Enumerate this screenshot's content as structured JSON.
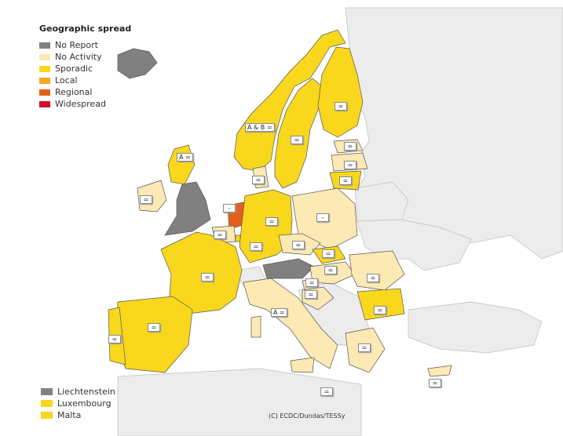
{
  "legend": {
    "title": "Geographic spread",
    "items": [
      {
        "label": "No Report",
        "color": "#808080"
      },
      {
        "label": "No Activity",
        "color": "#fce9b3"
      },
      {
        "label": "Sporadic",
        "color": "#f9d71c"
      },
      {
        "label": "Local",
        "color": "#f5a623"
      },
      {
        "label": "Regional",
        "color": "#e4601a"
      },
      {
        "label": "Widespread",
        "color": "#d0102c"
      }
    ]
  },
  "small_states": [
    {
      "label": "Liechtenstein",
      "color": "#808080"
    },
    {
      "label": "Luxembourg",
      "color": "#f9d71c"
    },
    {
      "label": "Malta",
      "color": "#f9d71c"
    }
  ],
  "credit": "(C) ECDC/Dundas/TESSy",
  "tags": [
    {
      "text": "A & B =",
      "country": "Norway"
    },
    {
      "text": "=",
      "country": "Finland"
    },
    {
      "text": "=",
      "country": "Sweden"
    },
    {
      "text": "A =",
      "country": "United Kingdom"
    },
    {
      "text": "=",
      "country": "Ireland"
    },
    {
      "text": "=",
      "country": "Estonia"
    },
    {
      "text": "=",
      "country": "Latvia"
    },
    {
      "text": "=",
      "country": "Lithuania"
    },
    {
      "text": "=",
      "country": "Denmark"
    },
    {
      "text": "-",
      "country": "Netherlands"
    },
    {
      "text": "=",
      "country": "Belgium"
    },
    {
      "text": "=",
      "country": "Germany"
    },
    {
      "text": "-",
      "country": "Poland"
    },
    {
      "text": "=",
      "country": "Czech Republic"
    },
    {
      "text": "=",
      "country": "Slovakia"
    },
    {
      "text": "=",
      "country": "France"
    },
    {
      "text": "=",
      "country": "Luxembourg"
    },
    {
      "text": "=",
      "country": "Hungary"
    },
    {
      "text": "=",
      "country": "Romania"
    },
    {
      "text": "=",
      "country": "Slovenia"
    },
    {
      "text": "=",
      "country": "Croatia"
    },
    {
      "text": "A =",
      "country": "Italy"
    },
    {
      "text": "=",
      "country": "Bulgaria"
    },
    {
      "text": "=",
      "country": "Spain"
    },
    {
      "text": "=",
      "country": "Portugal"
    },
    {
      "text": "=",
      "country": "Greece"
    },
    {
      "text": "=",
      "country": "Malta"
    },
    {
      "text": "=",
      "country": "Cyprus"
    }
  ]
}
